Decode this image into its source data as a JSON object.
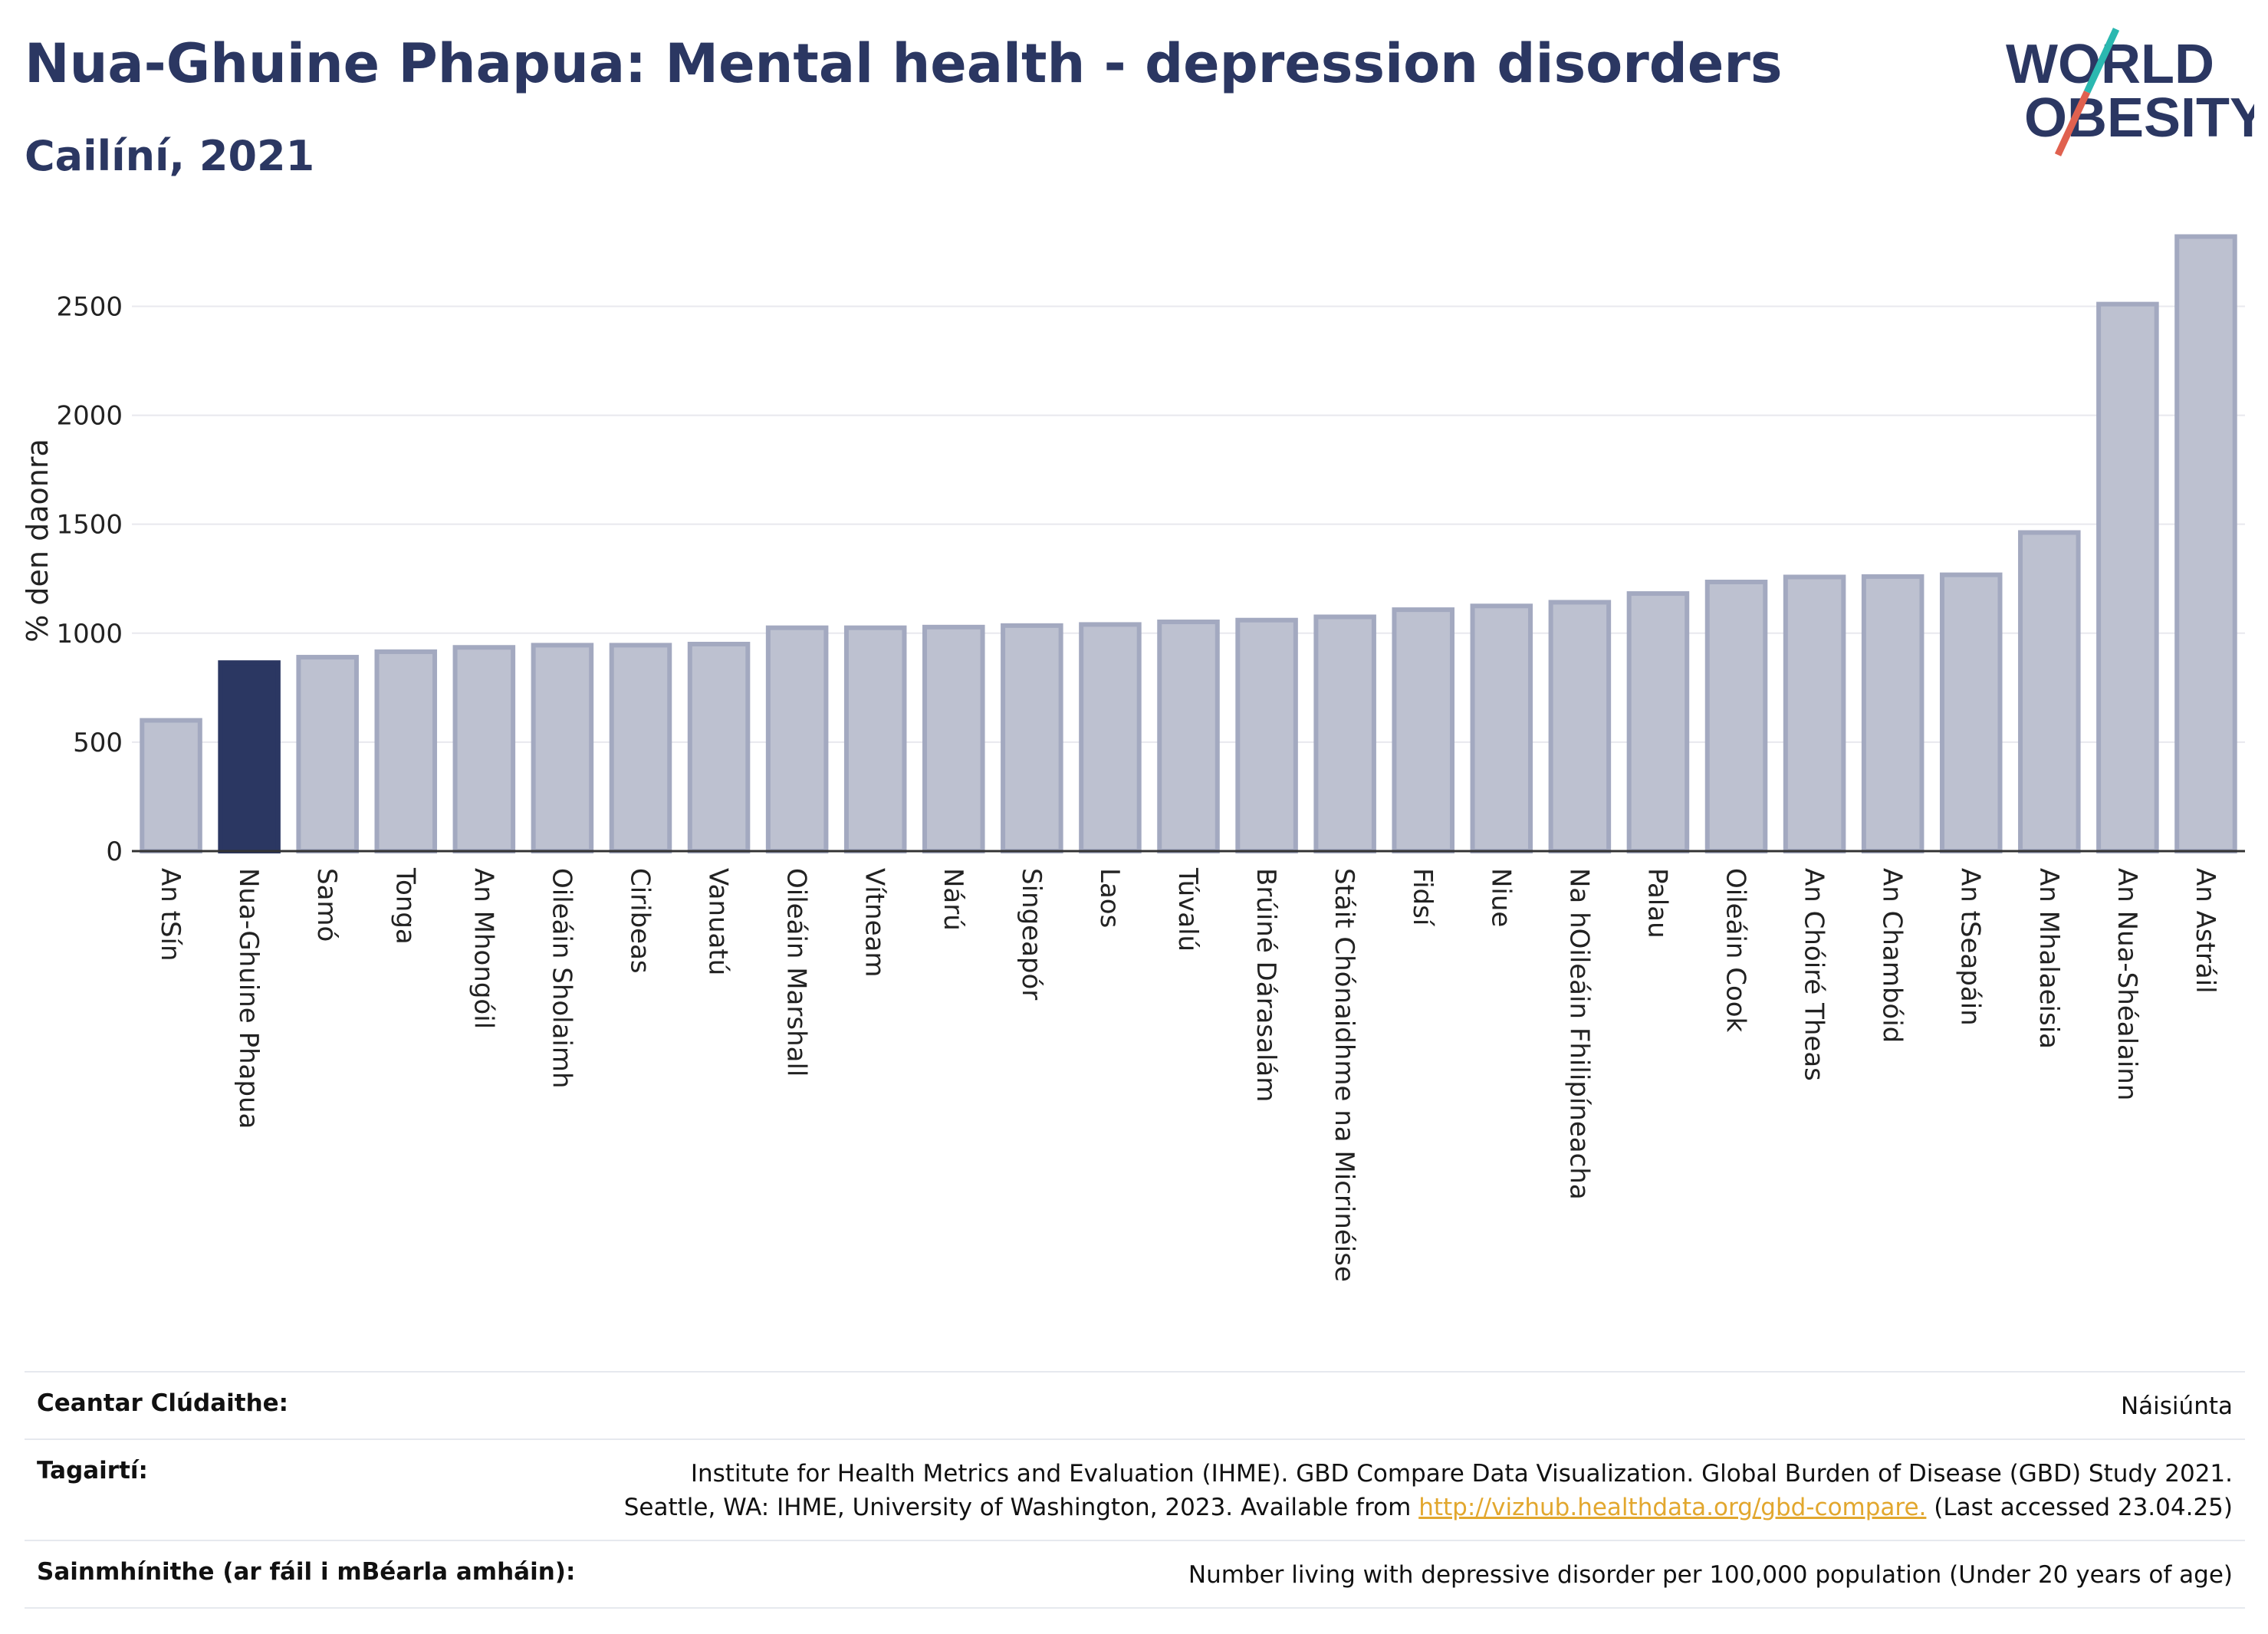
{
  "header": {
    "title": "Nua-Ghuine Phapua: Mental health - depression disorders",
    "subtitle": "Cailíní, 2021"
  },
  "logo": {
    "line1": "WORLD",
    "line2": "OBESITY",
    "colors": {
      "text": "#2b3762",
      "slash_teal": "#2bb8b0",
      "slash_red": "#e0614f"
    }
  },
  "chart_data": {
    "type": "bar",
    "ylabel": "% den daonra",
    "xlabel": "",
    "ylim": [
      0,
      2850
    ],
    "yticks": [
      0,
      500,
      1000,
      1500,
      2000,
      2500
    ],
    "grid": true,
    "highlight_category": "Nua-Ghuine Phapua",
    "colors": {
      "bar": "#bdc1d0",
      "bar_edge": "#a3a9c0",
      "highlight": "#2b3762",
      "grid": "#e8e8ee",
      "axis": "#333333"
    },
    "categories": [
      "An tSín",
      "Nua-Ghuine Phapua",
      "Samó",
      "Tonga",
      "An Mhongóil",
      "Oileáin Sholaimh",
      "Ciribeas",
      "Vanuatú",
      "Oileáin Marshall",
      "Vítneam",
      "Nárú",
      "Singeapór",
      "Laos",
      "Túvalú",
      "Brúiné Dárasalám",
      "Stáit Chónaidhme na Micrinéise",
      "Fidsí",
      "Niue",
      "Na hOileáin Fhilipíneacha",
      "Palau",
      "Oileáin Cook",
      "An Chóiré Theas",
      "An Chambóid",
      "An tSeapáin",
      "An Mhalaeisia",
      "An Nua-Shéalainn",
      "An Astráil"
    ],
    "values": [
      600,
      865,
      890,
      915,
      935,
      945,
      945,
      950,
      1025,
      1025,
      1028,
      1035,
      1040,
      1052,
      1060,
      1075,
      1108,
      1125,
      1142,
      1182,
      1235,
      1258,
      1260,
      1268,
      1462,
      2510,
      2820
    ]
  },
  "info": {
    "rows": [
      {
        "label": "Ceantar Clúdaithe:",
        "value": "Náisiúnta"
      },
      {
        "label": "Tagairtí:",
        "line1": "Institute for Health Metrics and Evaluation (IHME). GBD Compare Data Visualization. Global Burden of Disease (GBD) Study 2021.",
        "line2_pre": "Seattle, WA: IHME, University of Washington, 2023. Available from ",
        "link": "http://vizhub.healthdata.org/gbd-compare.",
        "line2_post": " (Last accessed 23.04.25)"
      },
      {
        "label": "Sainmhínithe (ar fáil i mBéarla amháin):",
        "value": "Number living with depressive disorder per 100,000 population (Under 20 years of age)"
      }
    ]
  }
}
